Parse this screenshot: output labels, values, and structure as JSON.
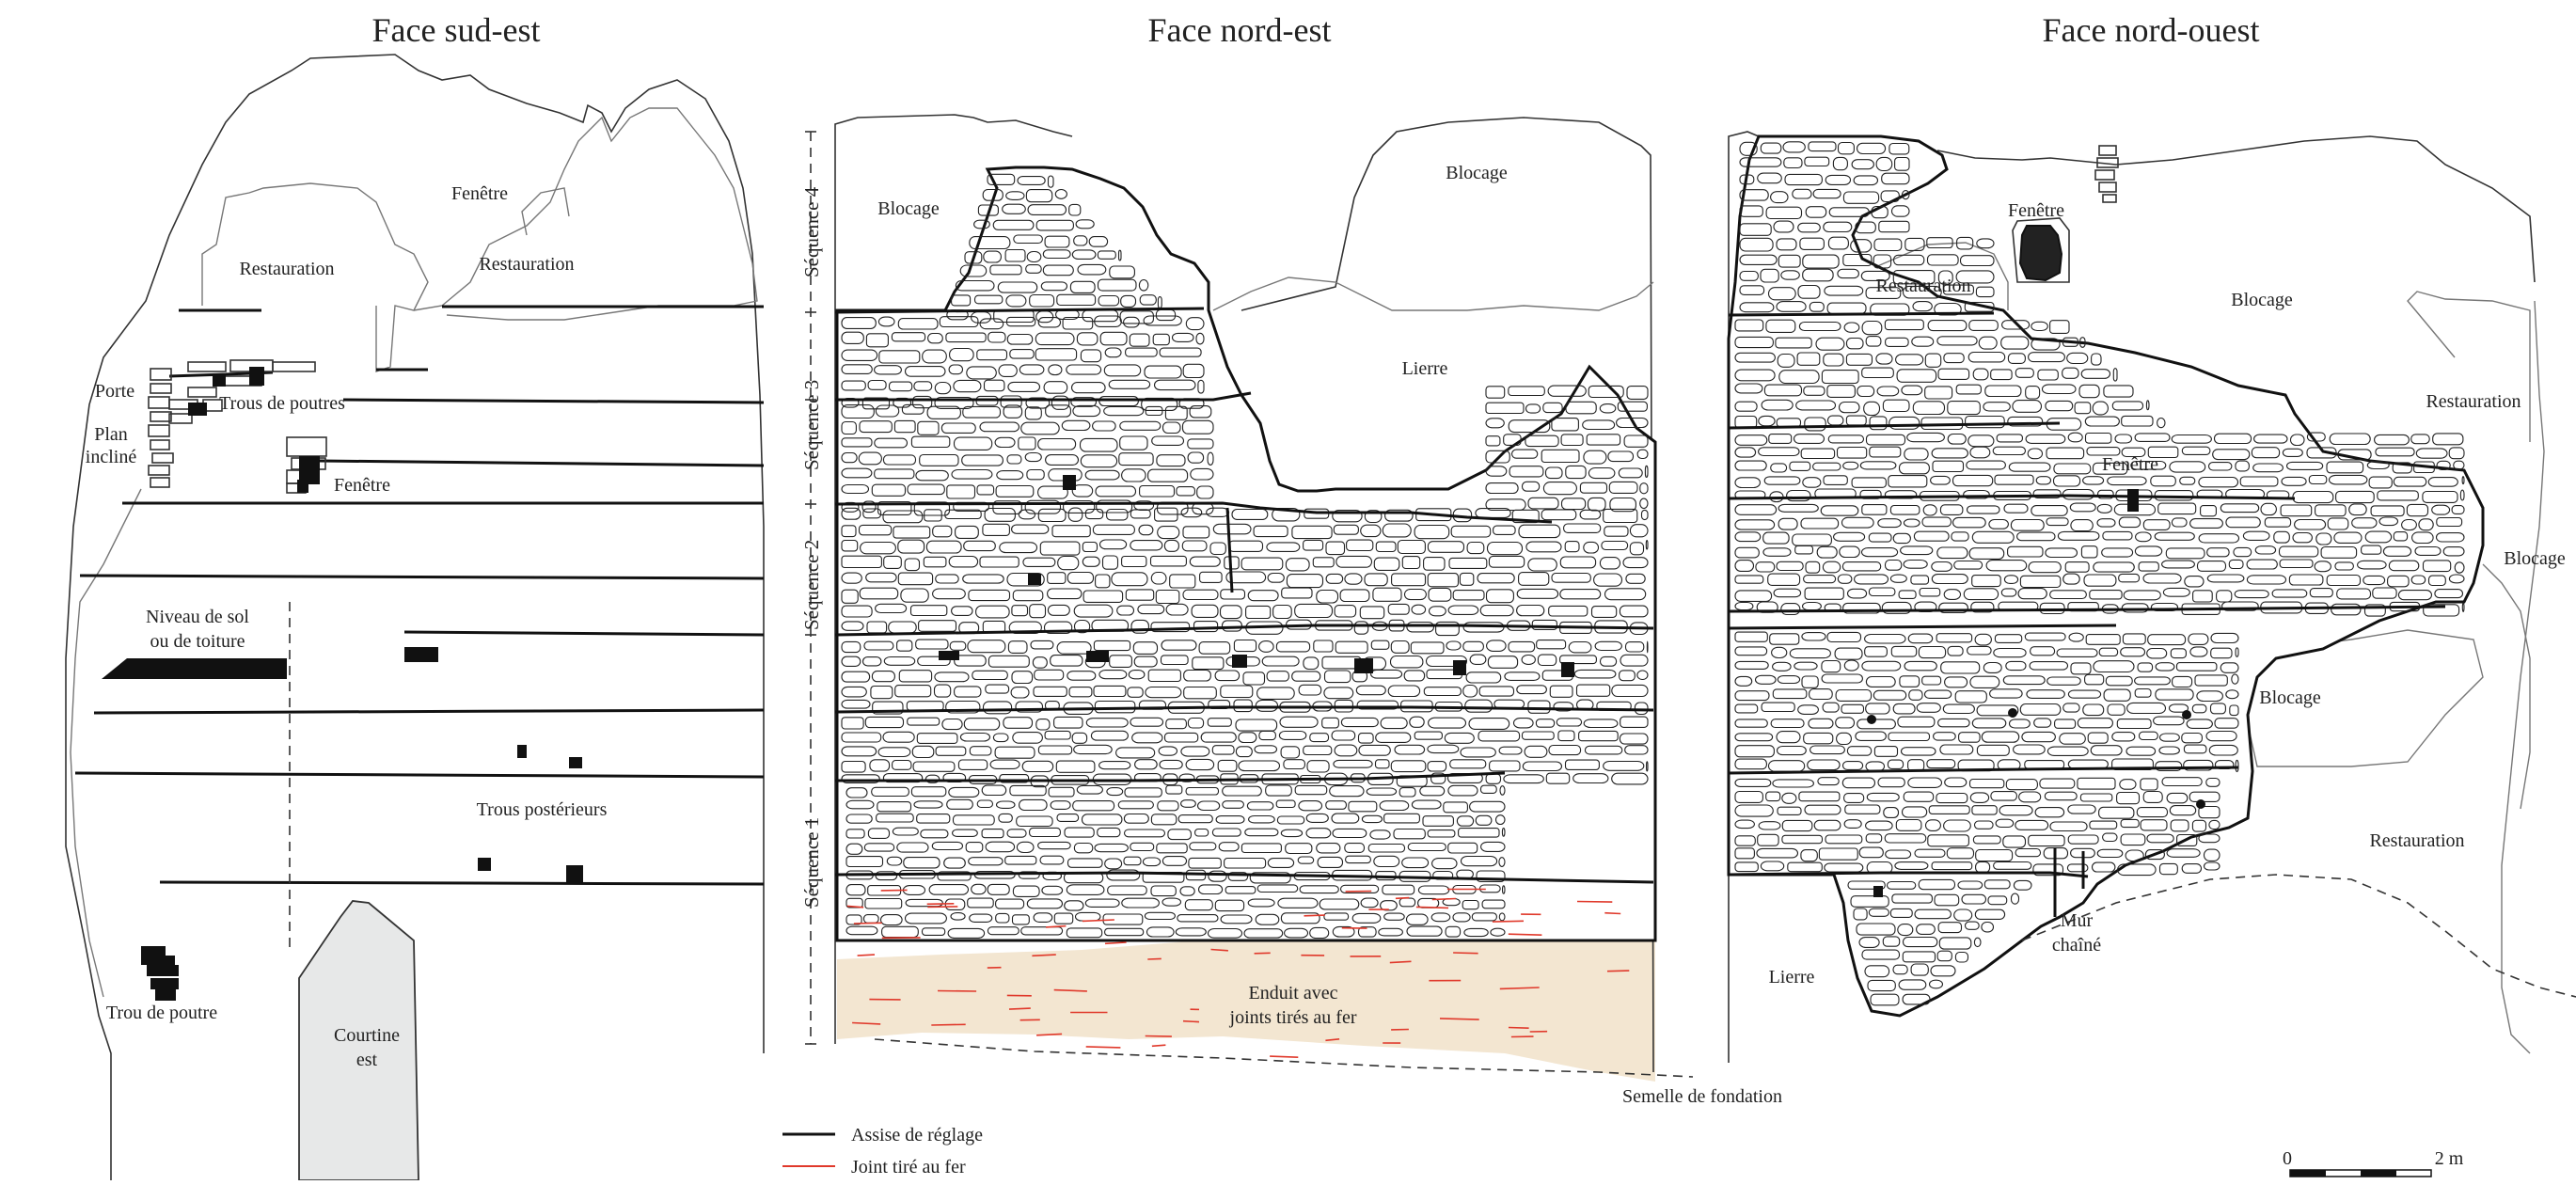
{
  "panels": {
    "south_east": {
      "title": "Face sud-est",
      "labels": {
        "fenetre_top": "Fenêtre",
        "restauration_left": "Restauration",
        "restauration_right": "Restauration",
        "porte": "Porte",
        "trous_poutres": "Trous de poutres",
        "plan_1": "Plan",
        "plan_2": "incliné",
        "fenetre_mid": "Fenêtre",
        "niveau_1": "Niveau de sol",
        "niveau_2": "ou de toiture",
        "trous_posterieurs": "Trous postérieurs",
        "trou_poutre": "Trou de poutre",
        "courtine_1": "Courtine",
        "courtine_2": "est"
      }
    },
    "north_east": {
      "title": "Face nord-est",
      "labels": {
        "blocage_left": "Blocage",
        "blocage_right": "Blocage",
        "lierre": "Lierre",
        "enduit_1": "Enduit avec",
        "enduit_2": "joints tirés au fer",
        "semelle": "Semelle de fondation"
      },
      "sequences": [
        "Séquence 4",
        "Séquence 3",
        "Séquence 2",
        "Séquence 1"
      ]
    },
    "north_west": {
      "title": "Face nord-ouest",
      "labels": {
        "fenetre_top": "Fenêtre",
        "restauration_top": "Restauration",
        "blocage_top": "Blocage",
        "restauration_right": "Restauration",
        "fenetre_mid": "Fenêtre",
        "blocage_right": "Blocage",
        "blocage_mid": "Blocage",
        "restauration_bottom": "Restauration",
        "mur_1": "Mur",
        "mur_2": "chaîné",
        "lierre": "Lierre"
      }
    }
  },
  "legend": {
    "assise": "Assise de réglage",
    "joint": "Joint tiré au fer"
  },
  "scale": {
    "start": "0",
    "end": "2 m"
  },
  "colors": {
    "enduit": "#f3e6d1",
    "joint": "#e0392b",
    "courtine": "#e7e8e8",
    "ink": "#111111"
  }
}
